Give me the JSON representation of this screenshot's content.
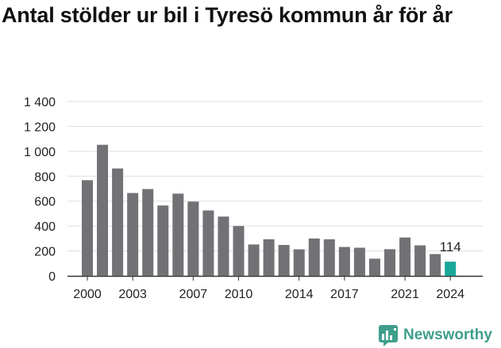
{
  "chart_data": {
    "type": "bar",
    "title": "Antal stölder ur bil i Tyresö kommun år för år",
    "xlabel": "",
    "ylabel": "",
    "ylim": [
      0,
      1400
    ],
    "y_ticks": [
      0,
      200,
      400,
      600,
      800,
      1000,
      1200,
      1400
    ],
    "y_tick_labels": [
      "0",
      "200",
      "400",
      "600",
      "800",
      "1 000",
      "1 200",
      "1 400"
    ],
    "x_tick_labels": [
      "2000",
      "2003",
      "2007",
      "2010",
      "2014",
      "2017",
      "2021",
      "2024"
    ],
    "categories": [
      "2000",
      "2001",
      "2002",
      "2003",
      "2004",
      "2005",
      "2006",
      "2007",
      "2008",
      "2009",
      "2010",
      "2011",
      "2012",
      "2013",
      "2014",
      "2015",
      "2016",
      "2017",
      "2018",
      "2019",
      "2020",
      "2021",
      "2022",
      "2023",
      "2024"
    ],
    "values": [
      768,
      1052,
      862,
      665,
      697,
      565,
      660,
      596,
      525,
      476,
      400,
      252,
      294,
      248,
      213,
      300,
      294,
      232,
      226,
      138,
      214,
      308,
      245,
      175,
      114
    ],
    "highlight_index": 24,
    "annotation": "114",
    "bar_color": "#727175",
    "highlight_color": "#1aa79b",
    "grid": true
  },
  "brand": {
    "name": "Newsworthy",
    "color": "#3f9e8c",
    "icon": "newsworthy-logo-icon"
  }
}
